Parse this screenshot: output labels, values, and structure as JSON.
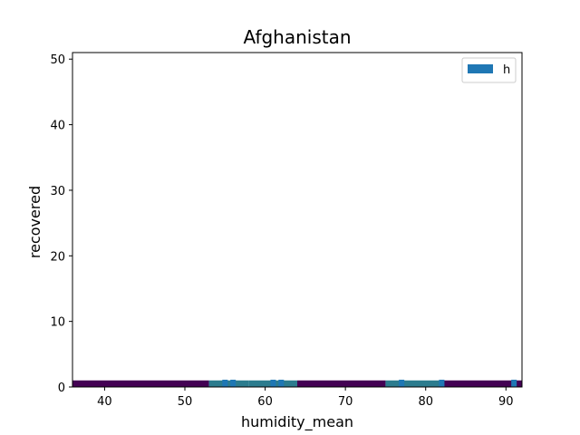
{
  "chart_data": {
    "type": "heatmap",
    "title": "Afghanistan",
    "xlabel": "humidity_mean",
    "ylabel": "recovered",
    "xlim": [
      36,
      92
    ],
    "ylim": [
      0,
      51
    ],
    "x_ticks": [
      40,
      50,
      60,
      70,
      80,
      90
    ],
    "y_ticks": [
      0,
      10,
      20,
      30,
      40,
      50
    ],
    "legend": {
      "position": "top-right",
      "entries": [
        {
          "label": "h",
          "color": "#1f77b4"
        }
      ]
    },
    "colors": {
      "low": "#440154",
      "mid": "#2c7c8e",
      "high": "#1f77b4"
    },
    "x_bins": [
      36,
      53,
      58,
      64,
      75,
      82,
      92
    ],
    "y_bins": [
      0,
      1
    ],
    "cells": [
      {
        "x0": 36,
        "x1": 53,
        "y0": 0,
        "y1": 1,
        "level": "low"
      },
      {
        "x0": 53,
        "x1": 58,
        "y0": 0,
        "y1": 1,
        "level": "mid"
      },
      {
        "x0": 58,
        "x1": 64,
        "y0": 0,
        "y1": 1,
        "level": "mid"
      },
      {
        "x0": 64,
        "x1": 75,
        "y0": 0,
        "y1": 1,
        "level": "low"
      },
      {
        "x0": 75,
        "x1": 82,
        "y0": 0,
        "y1": 1,
        "level": "mid"
      },
      {
        "x0": 82,
        "x1": 92,
        "y0": 0,
        "y1": 1,
        "level": "low"
      }
    ],
    "marks": [
      {
        "x": 55,
        "y": 0
      },
      {
        "x": 56,
        "y": 0
      },
      {
        "x": 61,
        "y": 0
      },
      {
        "x": 62,
        "y": 0
      },
      {
        "x": 77,
        "y": 0
      },
      {
        "x": 82,
        "y": 0
      },
      {
        "x": 91,
        "y": 0
      }
    ]
  }
}
